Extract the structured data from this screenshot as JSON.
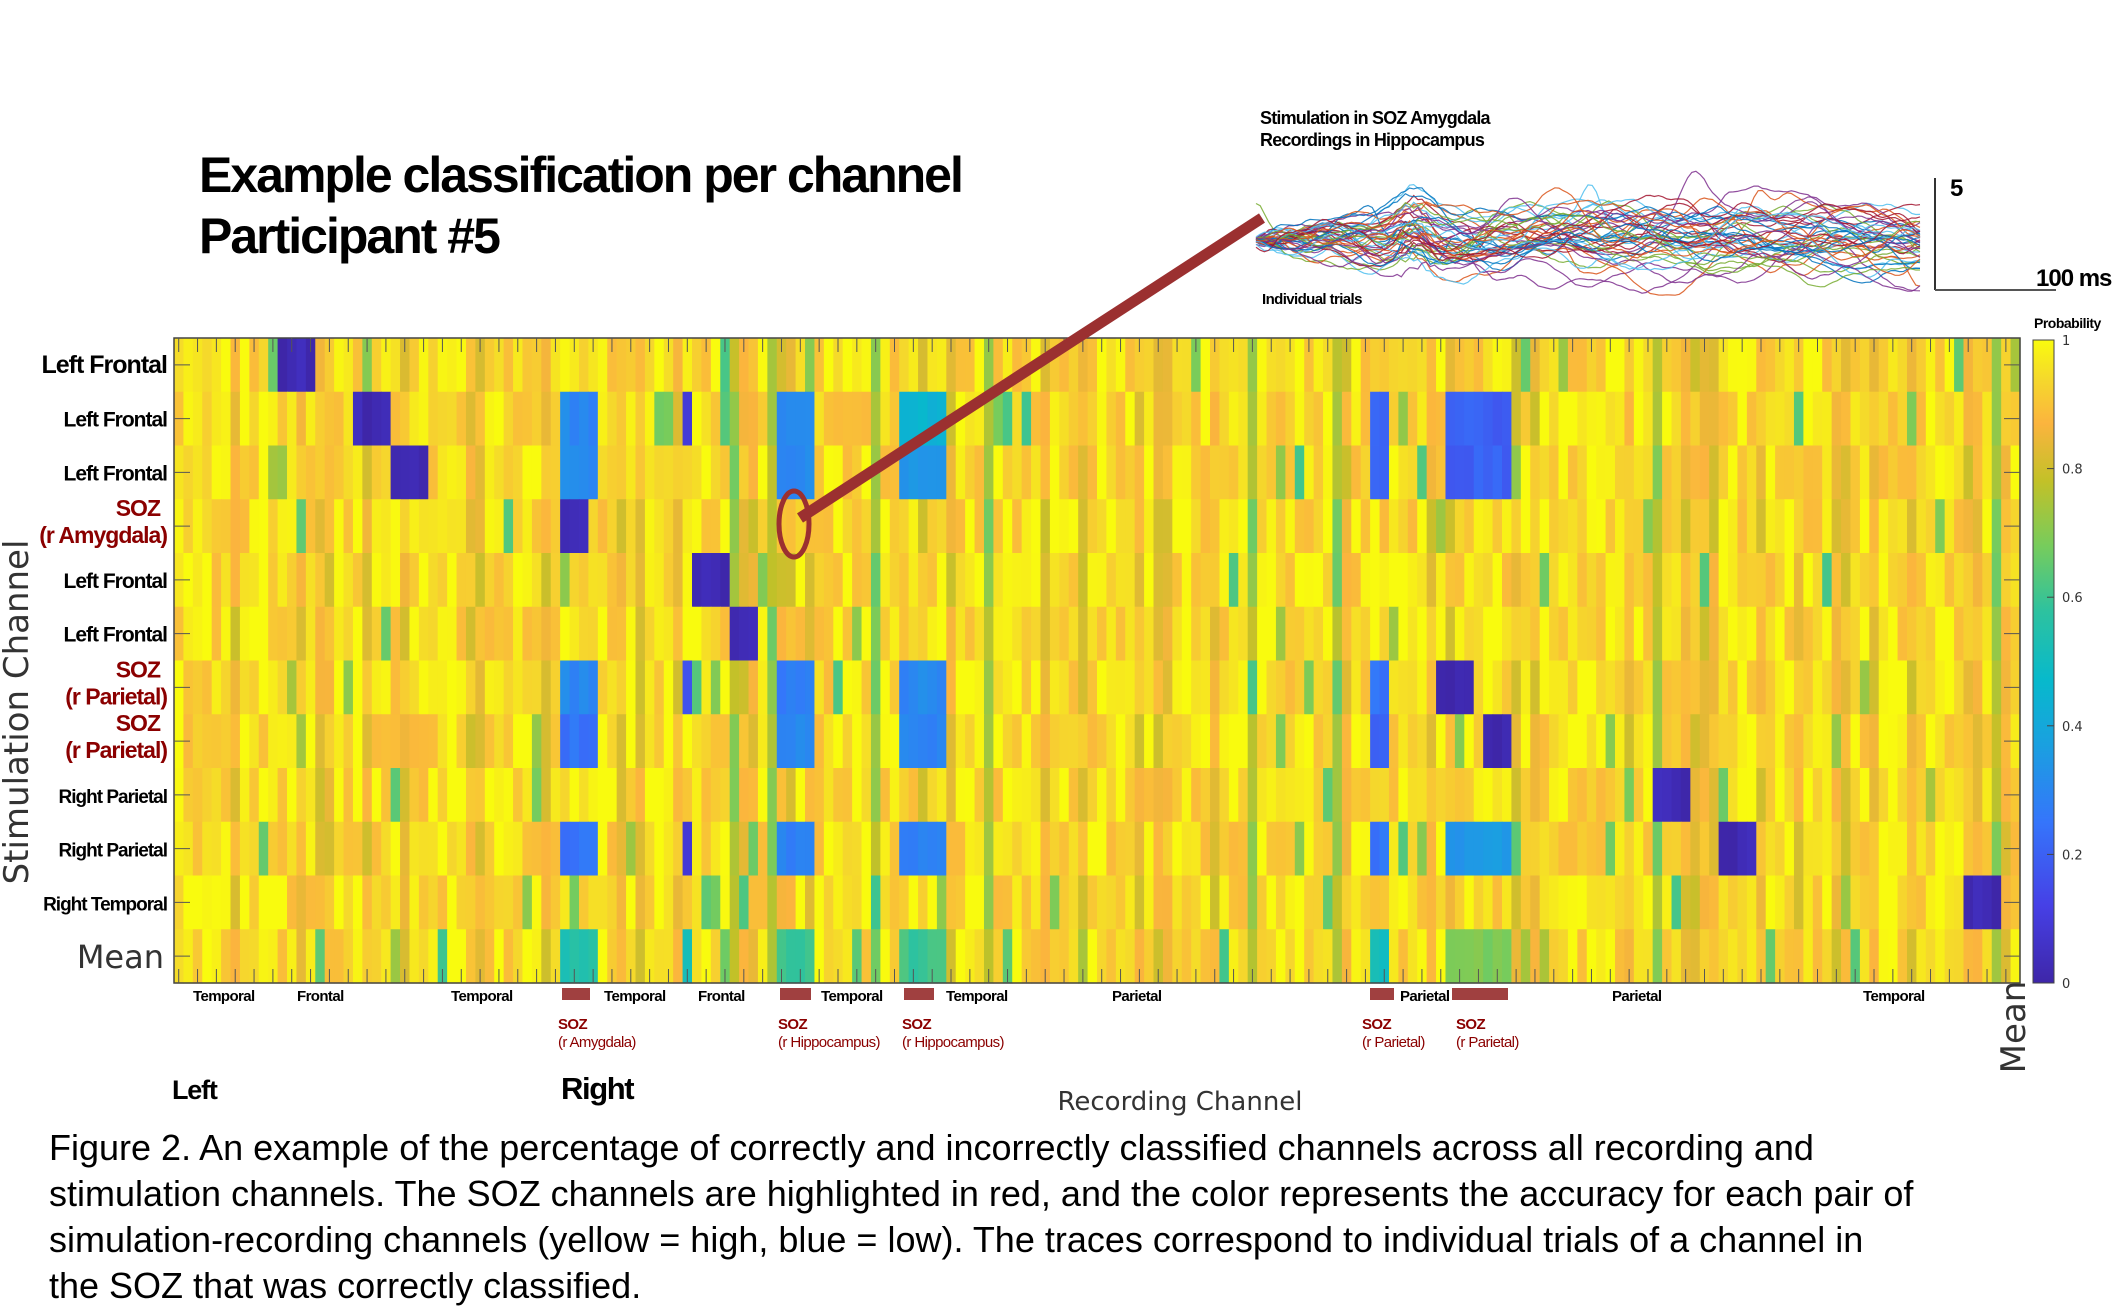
{
  "title": {
    "line1": "Example classification per channel",
    "line2": "Participant #5"
  },
  "inset": {
    "line1": "Stimulation in SOZ Amygdala",
    "line2": "Recordings in Hippocampus",
    "trials_label": "Individual trials",
    "scale_y": "5",
    "scale_x": "100 ms",
    "trace_colors": [
      "#0072bd",
      "#d95319",
      "#7e2f8e",
      "#77ac30",
      "#4dbeee",
      "#a2142f"
    ]
  },
  "colors": {
    "soz": "#8b0000",
    "soz_bar": "#a04040",
    "arrow": "#9b3030"
  },
  "chart_data": {
    "type": "heatmap",
    "ylabel": "Stimulation Channel",
    "xlabel": "Recording Channel",
    "x_end_label": "Mean",
    "colorbar": {
      "title": "Probability",
      "range": [
        0,
        1
      ],
      "ticks": [
        "0",
        "0.2",
        "0.4",
        "0.6",
        "0.8",
        "1"
      ]
    },
    "colormap": "parula",
    "rows": [
      {
        "label": "Left Frontal",
        "soz": false
      },
      {
        "label": "Left Frontal",
        "soz": false
      },
      {
        "label": "Left Frontal",
        "soz": false
      },
      {
        "label": "SOZ",
        "sub": "(r Amygdala)",
        "soz": true
      },
      {
        "label": "Left Frontal",
        "soz": false
      },
      {
        "label": "Left Frontal",
        "soz": false
      },
      {
        "label": "SOZ",
        "sub": "(r Parietal)",
        "soz": true
      },
      {
        "label": "SOZ",
        "sub": "(r Parietal)",
        "soz": true
      },
      {
        "label": "Right Parietal",
        "soz": false
      },
      {
        "label": "Right Parietal",
        "soz": false
      },
      {
        "label": "Right Temporal",
        "soz": false
      },
      {
        "label": "Mean",
        "soz": false
      }
    ],
    "n_columns": 196,
    "typical_value_range": [
      0.75,
      1.0
    ],
    "low_cells": [
      {
        "row": 0,
        "cols": [
          11,
          14
        ],
        "value": 0.02
      },
      {
        "row": 1,
        "cols": [
          19,
          22
        ],
        "value": 0.02
      },
      {
        "row": 2,
        "cols": [
          23,
          26
        ],
        "value": 0.02
      },
      {
        "row": 3,
        "cols": [
          41,
          43
        ],
        "value": 0.02
      },
      {
        "row": 4,
        "cols": [
          55,
          58
        ],
        "value": 0.02
      },
      {
        "row": 5,
        "cols": [
          59,
          61
        ],
        "value": 0.02
      },
      {
        "row": 6,
        "cols": [
          134,
          137
        ],
        "value": 0.02
      },
      {
        "row": 7,
        "cols": [
          139,
          141
        ],
        "value": 0.02
      },
      {
        "row": 8,
        "cols": [
          157,
          160
        ],
        "value": 0.02
      },
      {
        "row": 9,
        "cols": [
          164,
          167
        ],
        "value": 0.02
      },
      {
        "row": 10,
        "cols": [
          190,
          193
        ],
        "value": 0.02
      },
      {
        "row": 1,
        "cols": [
          41,
          44
        ],
        "value": 0.3
      },
      {
        "row": 2,
        "cols": [
          41,
          44
        ],
        "value": 0.3
      },
      {
        "row": 6,
        "cols": [
          41,
          44
        ],
        "value": 0.3
      },
      {
        "row": 7,
        "cols": [
          41,
          44
        ],
        "value": 0.25
      },
      {
        "row": 9,
        "cols": [
          41,
          44
        ],
        "value": 0.25
      },
      {
        "row": 1,
        "cols": [
          54,
          54
        ],
        "value": 0.1
      },
      {
        "row": 6,
        "cols": [
          54,
          54
        ],
        "value": 0.15
      },
      {
        "row": 9,
        "cols": [
          54,
          54
        ],
        "value": 0.1
      },
      {
        "row": 1,
        "cols": [
          64,
          67
        ],
        "value": 0.3
      },
      {
        "row": 2,
        "cols": [
          64,
          67
        ],
        "value": 0.3
      },
      {
        "row": 6,
        "cols": [
          64,
          67
        ],
        "value": 0.28
      },
      {
        "row": 7,
        "cols": [
          64,
          67
        ],
        "value": 0.3
      },
      {
        "row": 9,
        "cols": [
          64,
          67
        ],
        "value": 0.28
      },
      {
        "row": 1,
        "cols": [
          77,
          81
        ],
        "value": 0.45
      },
      {
        "row": 2,
        "cols": [
          77,
          81
        ],
        "value": 0.35
      },
      {
        "row": 6,
        "cols": [
          77,
          81
        ],
        "value": 0.3
      },
      {
        "row": 7,
        "cols": [
          77,
          81
        ],
        "value": 0.3
      },
      {
        "row": 9,
        "cols": [
          77,
          81
        ],
        "value": 0.28
      },
      {
        "row": 1,
        "cols": [
          127,
          128
        ],
        "value": 0.2
      },
      {
        "row": 2,
        "cols": [
          127,
          128
        ],
        "value": 0.2
      },
      {
        "row": 6,
        "cols": [
          127,
          128
        ],
        "value": 0.25
      },
      {
        "row": 7,
        "cols": [
          127,
          128
        ],
        "value": 0.2
      },
      {
        "row": 9,
        "cols": [
          127,
          128
        ],
        "value": 0.25
      },
      {
        "row": 1,
        "cols": [
          135,
          141
        ],
        "value": 0.2
      },
      {
        "row": 2,
        "cols": [
          135,
          141
        ],
        "value": 0.2
      },
      {
        "row": 9,
        "cols": [
          135,
          141
        ],
        "value": 0.35
      },
      {
        "row": 11,
        "cols": [
          41,
          44
        ],
        "value": 0.55
      },
      {
        "row": 11,
        "cols": [
          54,
          54
        ],
        "value": 0.5
      },
      {
        "row": 11,
        "cols": [
          64,
          67
        ],
        "value": 0.6
      },
      {
        "row": 11,
        "cols": [
          77,
          81
        ],
        "value": 0.6
      },
      {
        "row": 11,
        "cols": [
          127,
          128
        ],
        "value": 0.5
      },
      {
        "row": 11,
        "cols": [
          135,
          141
        ],
        "value": 0.68
      }
    ],
    "column_groups": [
      {
        "label": "Temporal"
      },
      {
        "label": "Frontal"
      },
      {
        "label": "Temporal"
      },
      {
        "label": "Temporal"
      },
      {
        "label": "Frontal"
      },
      {
        "label": "Temporal"
      },
      {
        "label": "Temporal"
      },
      {
        "label": "Parietal"
      },
      {
        "label": "Parietal"
      },
      {
        "label": "Parietal"
      },
      {
        "label": "Temporal"
      }
    ],
    "soz_columns": [
      {
        "label": "SOZ",
        "sub": "(r Amygdala)"
      },
      {
        "label": "SOZ",
        "sub": "(r Hippocampus)"
      },
      {
        "label": "SOZ",
        "sub": "(r Hippocampus)"
      },
      {
        "label": "SOZ",
        "sub": "(r Parietal)"
      },
      {
        "label": "SOZ",
        "sub": "(r Parietal)"
      }
    ],
    "hemisphere_labels": [
      "Left",
      "Right"
    ]
  },
  "caption": {
    "lines": [
      "Figure 2. An example of the percentage of correctly and incorrectly classified channels across all recording and",
      "stimulation channels. The SOZ channels are highlighted in red, and the color represents the accuracy for each pair of",
      "simulation-recording channels (yellow = high, blue = low). The traces correspond to individual trials of a channel in",
      "the SOZ that was correctly classified."
    ]
  }
}
